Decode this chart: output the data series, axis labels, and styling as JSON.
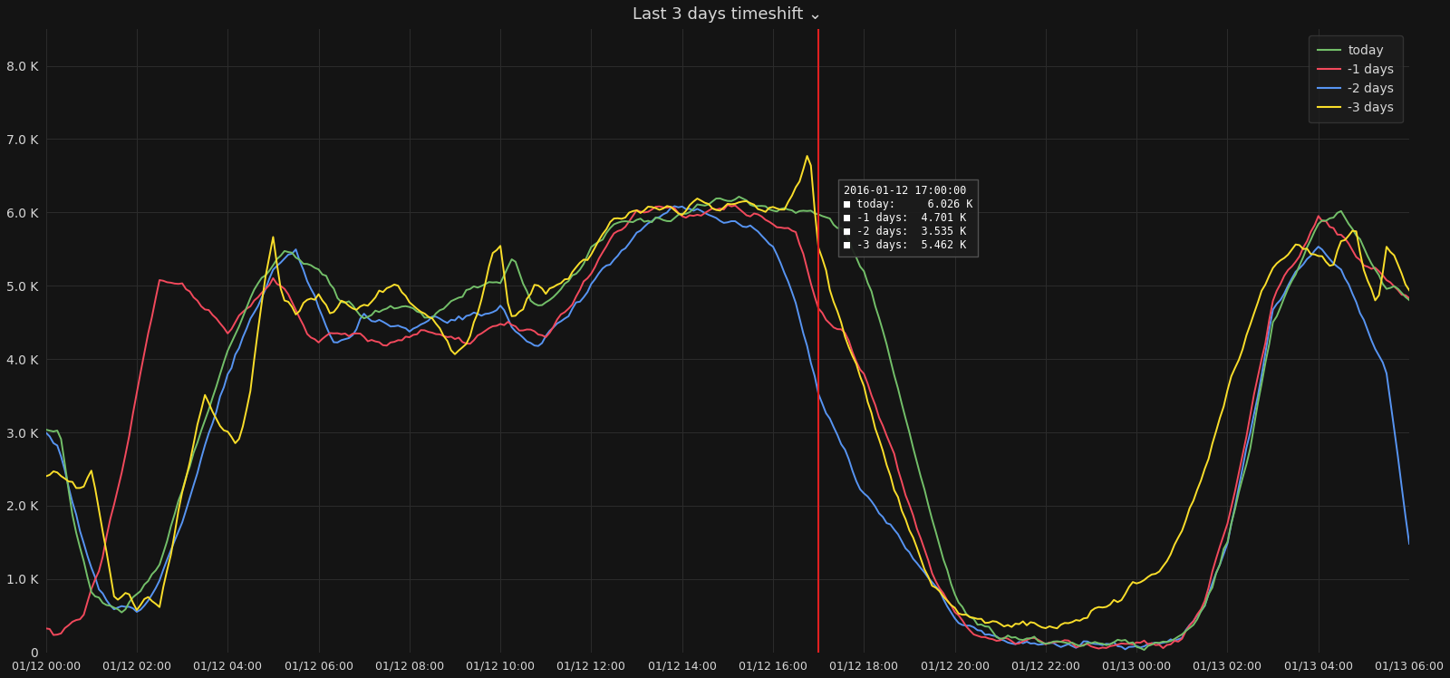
{
  "title": "Last 3 days timeshift ⌄",
  "background_color": "#141414",
  "grid_color": "#2c2c2c",
  "text_color": "#d8d8d8",
  "ylim": [
    0,
    8500
  ],
  "yticks": [
    0,
    1000,
    2000,
    3000,
    4000,
    5000,
    6000,
    7000,
    8000
  ],
  "ytick_labels": [
    "0",
    "1.0 K",
    "2.0 K",
    "3.0 K",
    "4.0 K",
    "5.0 K",
    "6.0 K",
    "7.0 K",
    "8.0 K"
  ],
  "xtick_labels": [
    "01/12 00:00",
    "01/12 02:00",
    "01/12 04:00",
    "01/12 06:00",
    "01/12 08:00",
    "01/12 10:00",
    "01/12 12:00",
    "01/12 14:00",
    "01/12 16:00",
    "01/12 18:00",
    "01/12 20:00",
    "01/12 22:00",
    "01/13 00:00",
    "01/13 02:00",
    "01/13 04:00",
    "01/13 06:00"
  ],
  "series": {
    "today": {
      "color": "#73bf69",
      "label": "today"
    },
    "minus1": {
      "color": "#f2495c",
      "label": "-1 days"
    },
    "minus2": {
      "color": "#5794f2",
      "label": "-2 days"
    },
    "minus3": {
      "color": "#fade2a",
      "label": "-3 days"
    }
  },
  "vline_x": 17.0,
  "vline_color": "#e02020",
  "tooltip": {
    "time": "2016-01-12 17:00:00",
    "today": "6.026 K",
    "minus1": "4.701 K",
    "minus2": "3.535 K",
    "minus3": "5.462 K"
  }
}
